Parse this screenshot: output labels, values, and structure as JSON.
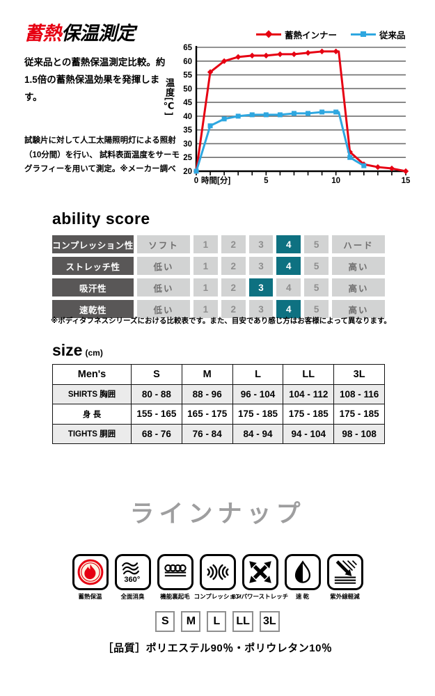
{
  "measurement": {
    "title_red": "蓄熱",
    "title_black": "保温測定",
    "description": "従来品との蓄熱保温測定比較。約1.5倍の蓄熱保温効果を発揮します。",
    "note_line1": "試験片に対して人工太陽照明灯による照射（10分間）を行い、",
    "note_line2": "試料表面温度をサーモグラフィーを用いて測定。※メーカー調べ"
  },
  "chart_data": {
    "type": "line",
    "xlabel": "時間[分]",
    "ylabel": "温度[℃]",
    "xlim": [
      0,
      15
    ],
    "ylim": [
      20,
      65
    ],
    "yticks": [
      20,
      25,
      30,
      35,
      40,
      45,
      50,
      55,
      60,
      65
    ],
    "xticks_labeled": [
      0,
      5,
      10,
      15
    ],
    "grid": "horizontal",
    "legend_position": "top-right",
    "series": [
      {
        "name": "蓄熱インナー",
        "color": "#e60012",
        "marker": "diamond",
        "x": [
          0,
          1,
          2,
          3,
          4,
          5,
          6,
          7,
          8,
          9,
          10,
          10.2,
          11,
          12,
          13,
          14,
          15
        ],
        "y": [
          20,
          56,
          60,
          61.5,
          62,
          62,
          62.5,
          62.5,
          63,
          63.5,
          63.5,
          63.5,
          27,
          22.5,
          21.5,
          21,
          20
        ]
      },
      {
        "name": "従来品",
        "color": "#2ea7e0",
        "marker": "square",
        "x": [
          0,
          1,
          2,
          3,
          4,
          5,
          6,
          7,
          8,
          9,
          10,
          10.2,
          11,
          12
        ],
        "y": [
          20,
          36.5,
          39,
          40,
          40.5,
          40.5,
          40.5,
          41,
          41,
          41.5,
          41.5,
          41.5,
          25,
          22
        ]
      }
    ]
  },
  "ability": {
    "title": "ability score",
    "scale": [
      "1",
      "2",
      "3",
      "4",
      "5"
    ],
    "rows": [
      {
        "label": "コンプレッション性",
        "low": "ソフト",
        "high": "ハード",
        "value": 4
      },
      {
        "label": "ストレッチ性",
        "low": "低い",
        "high": "高い",
        "value": 4
      },
      {
        "label": "吸汗性",
        "low": "低い",
        "high": "高い",
        "value": 3
      },
      {
        "label": "速乾性",
        "low": "低い",
        "high": "高い",
        "value": 4
      }
    ],
    "footnote": "※ボディタフネスシリーズにおける比較表です。また、目安であり感じ方はお客様によって異なります。"
  },
  "size": {
    "title": "size",
    "unit": "(cm)",
    "columns": [
      "Men's",
      "S",
      "M",
      "L",
      "LL",
      "3L"
    ],
    "rows": [
      {
        "label": "SHIRTS 胸囲",
        "values": [
          "80 - 88",
          "88 - 96",
          "96 - 104",
          "104 - 112",
          "108 - 116"
        ]
      },
      {
        "label": "身 長",
        "values": [
          "155 - 165",
          "165 - 175",
          "175 - 185",
          "175 - 185",
          "175 - 185"
        ]
      },
      {
        "label": "TIGHTS 胴囲",
        "values": [
          "68 - 76",
          "76 - 84",
          "84 - 94",
          "94 - 104",
          "98 - 108"
        ]
      }
    ]
  },
  "lineup": {
    "title": "ラインナップ",
    "features": [
      {
        "icon": "heat-retention-icon",
        "label": "蓄熱保温"
      },
      {
        "icon": "deodorant-360-icon",
        "label": "全面消臭",
        "icon_text": "360°"
      },
      {
        "icon": "brushed-lining-icon",
        "label": "機能裏起毛"
      },
      {
        "icon": "compression-icon",
        "label": "コンプレッション"
      },
      {
        "icon": "power-stretch-icon",
        "label": "BT/パワーストレッチ"
      },
      {
        "icon": "quick-dry-icon",
        "label": "速 乾"
      },
      {
        "icon": "uv-cut-icon",
        "label": "紫外線軽減"
      }
    ],
    "sizes": [
      "S",
      "M",
      "L",
      "LL",
      "3L"
    ],
    "quality": "［品質］ポリエステル90％・ポリウレタン10％"
  }
}
